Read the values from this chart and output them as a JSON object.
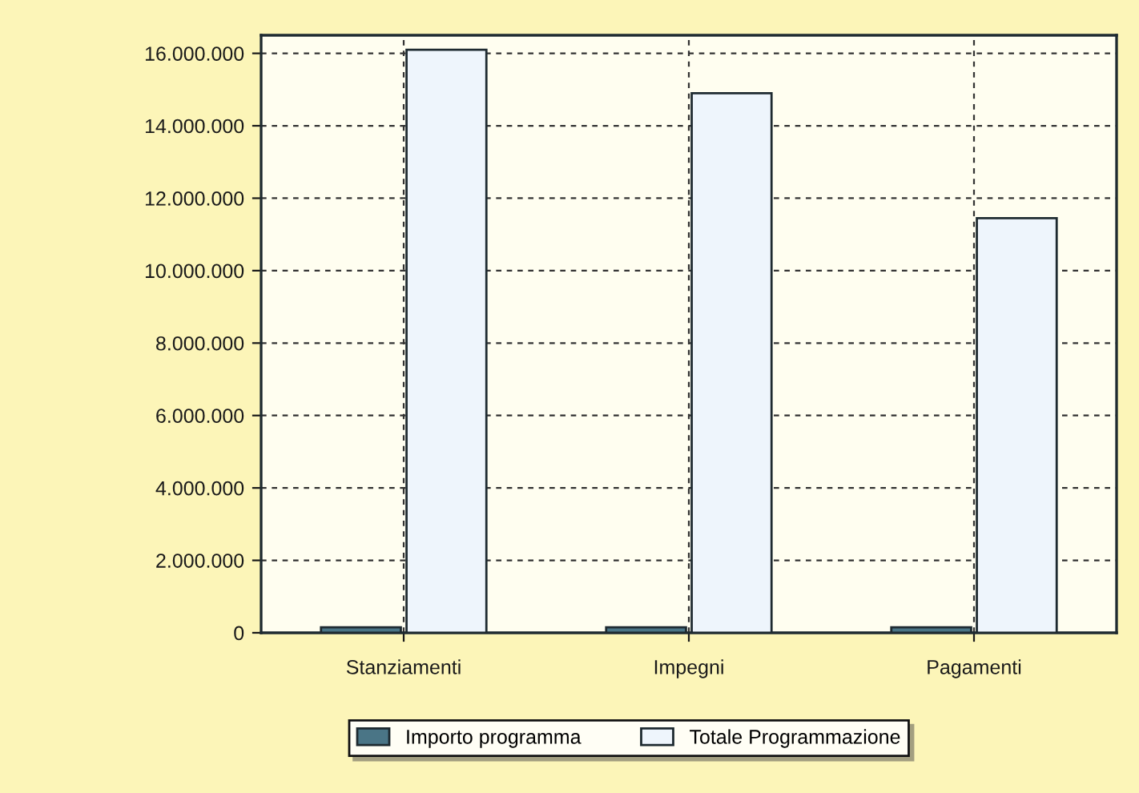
{
  "chart_data": {
    "type": "bar",
    "categories": [
      "Stanziamenti",
      "Impegni",
      "Pagamenti"
    ],
    "series": [
      {
        "name": "Importo programma",
        "color": "#4a7586",
        "values": [
          150000,
          150000,
          150000
        ]
      },
      {
        "name": "Totale Programmazione",
        "color": "#eef5fc",
        "values": [
          16100000,
          14900000,
          11450000
        ]
      }
    ],
    "ylim": [
      0,
      16500000
    ],
    "yticks": [
      {
        "value": 0,
        "label": "0"
      },
      {
        "value": 2000000,
        "label": "2.000.000"
      },
      {
        "value": 4000000,
        "label": "4.000.000"
      },
      {
        "value": 6000000,
        "label": "6.000.000"
      },
      {
        "value": 8000000,
        "label": "8.000.000"
      },
      {
        "value": 10000000,
        "label": "10.000.000"
      },
      {
        "value": 12000000,
        "label": "12.000.000"
      },
      {
        "value": 14000000,
        "label": "14.000.000"
      },
      {
        "value": 16000000,
        "label": "16.000.000"
      }
    ],
    "grid": true,
    "legend": "bottom"
  }
}
